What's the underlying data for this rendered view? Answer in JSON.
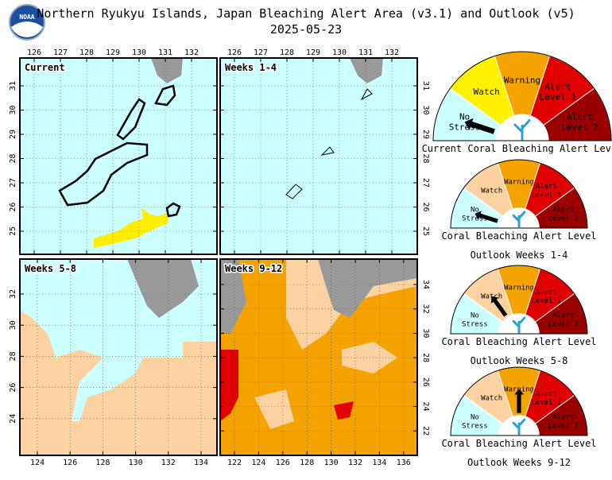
{
  "header": {
    "title": "Northern Ryukyu Islands, Japan Bleaching Alert Area (v3.1) and Outlook (v5)",
    "date": "2025-05-23",
    "logo": "NOAA"
  },
  "panels": [
    {
      "label": "Current",
      "x_ticks": [
        "126",
        "127",
        "128",
        "129",
        "130",
        "131",
        "132"
      ],
      "y_ticks": [
        "31",
        "30",
        "29",
        "28",
        "27",
        "26",
        "25"
      ]
    },
    {
      "label": "Weeks 1-4",
      "x_ticks": [
        "126",
        "127",
        "128",
        "129",
        "130",
        "131",
        "132"
      ],
      "y_ticks": [
        "31",
        "30",
        "29",
        "28",
        "27",
        "26",
        "25"
      ]
    },
    {
      "label": "Weeks 5-8",
      "x_ticks": [
        "124",
        "126",
        "128",
        "130",
        "132",
        "134"
      ],
      "y_ticks": [
        "32",
        "30",
        "28",
        "26",
        "24"
      ]
    },
    {
      "label": "Weeks 9-12",
      "x_ticks": [
        "122",
        "124",
        "126",
        "128",
        "130",
        "132",
        "134",
        "136"
      ],
      "y_ticks": [
        "34",
        "32",
        "30",
        "28",
        "26",
        "24",
        "22"
      ]
    }
  ],
  "gauge_levels": [
    [
      "No",
      "Stress"
    ],
    [
      "Watch"
    ],
    [
      "Warning"
    ],
    [
      "Alert",
      "Level 1"
    ],
    [
      "Alert",
      "Level 2"
    ]
  ],
  "gauges": [
    {
      "caption": [
        "Current Coral Bleaching Alert Level"
      ],
      "needle_level": 0,
      "colors": [
        "#ccffff",
        "#fff200",
        "#f5a300",
        "#e00000",
        "#9a0000"
      ]
    },
    {
      "caption": [
        "Coral Bleaching Alert Level",
        "Outlook Weeks 1-4"
      ],
      "needle_level": 0,
      "colors": [
        "#ccffff",
        "#fcd3a0",
        "#f5a300",
        "#e00000",
        "#9a0000"
      ]
    },
    {
      "caption": [
        "Coral Bleaching Alert Level",
        "Outlook Weeks 5-8"
      ],
      "needle_level": 1,
      "colors": [
        "#ccffff",
        "#fcd3a0",
        "#f5a300",
        "#e00000",
        "#9a0000"
      ]
    },
    {
      "caption": [
        "Coral Bleaching Alert Level",
        "Outlook Weeks 9-12"
      ],
      "needle_level": 2,
      "colors": [
        "#ccffff",
        "#fcd3a0",
        "#f5a300",
        "#e00000",
        "#9a0000"
      ]
    }
  ]
}
